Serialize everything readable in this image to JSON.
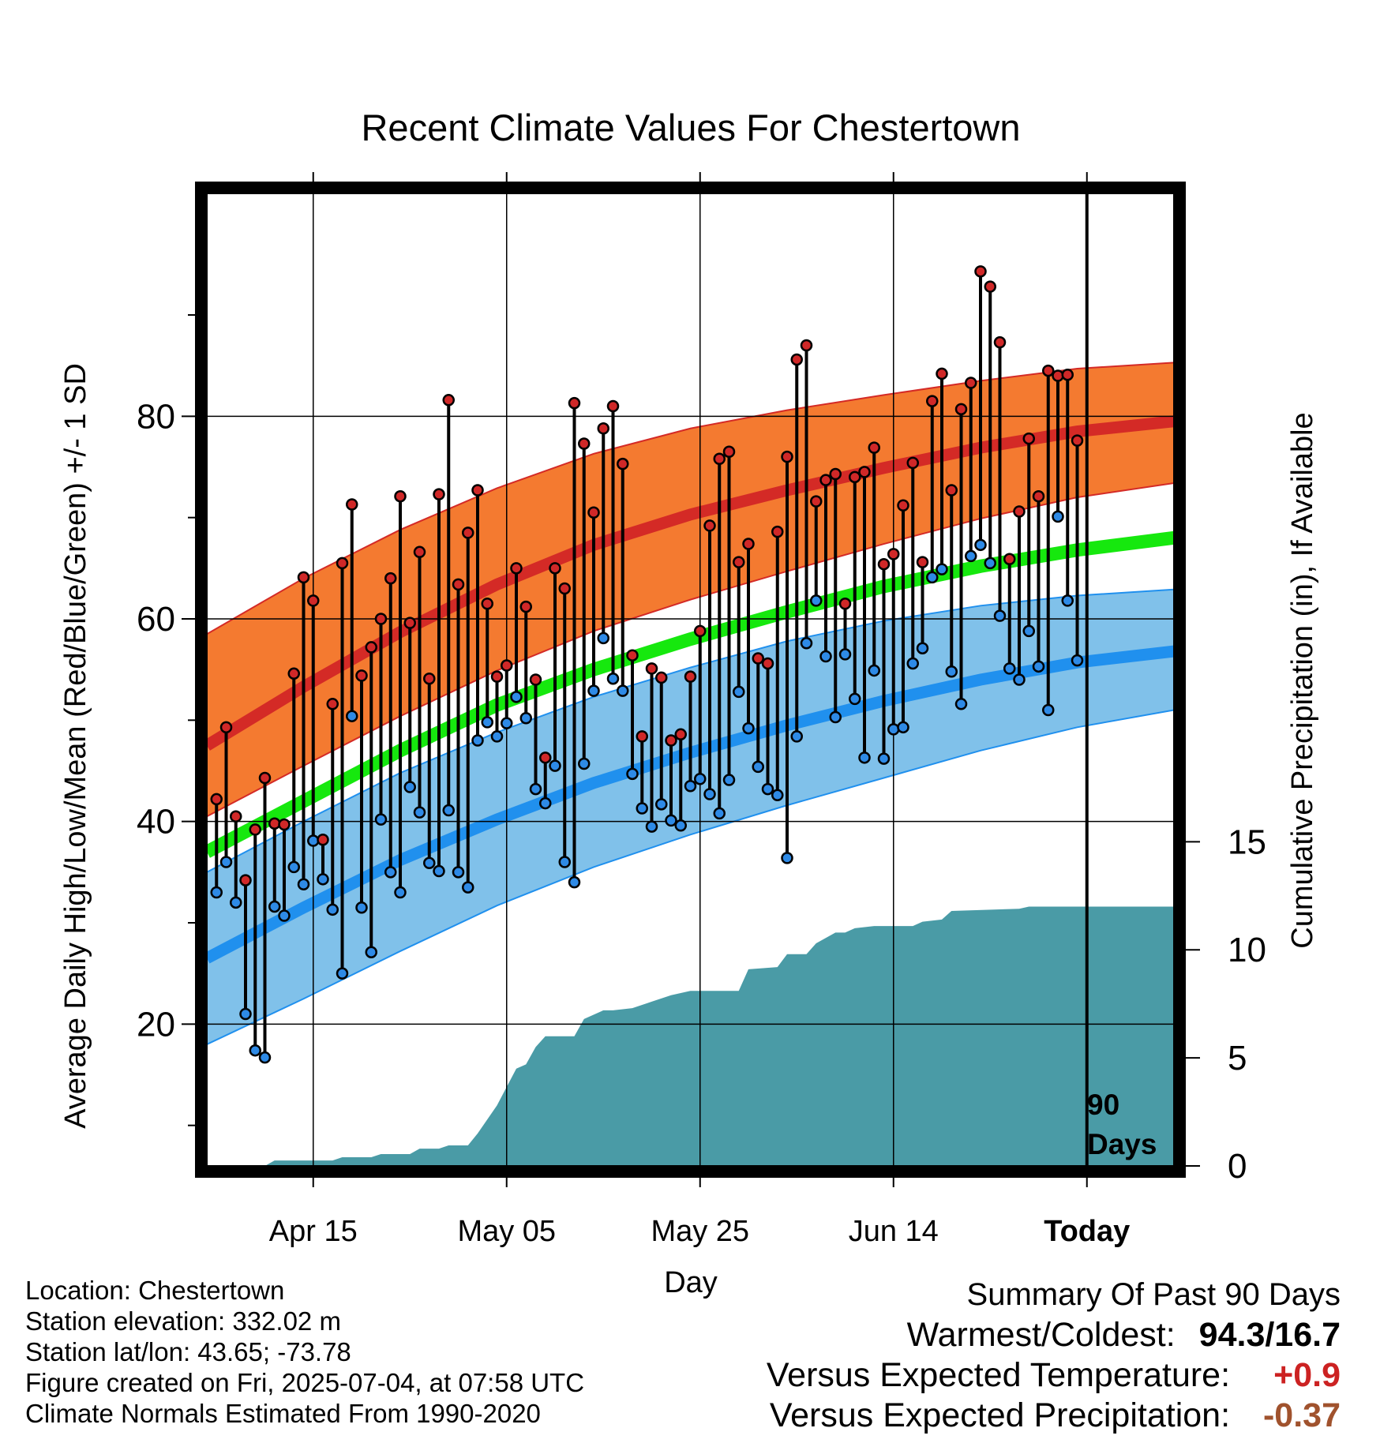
{
  "chart_data": {
    "type": "line",
    "title": "Recent Climate Values For Chestertown",
    "xlabel": "Day",
    "ylabel": "Average Daily High/Low/Mean (Red/Blue/Green) +/- 1 SD",
    "y2label": "Cumulative Precipitation (in), If Available",
    "x_ticks": [
      "Apr 15",
      "May 05",
      "May 25",
      "Jun 14",
      "Today"
    ],
    "x_tick_days": [
      11,
      31,
      51,
      71,
      91
    ],
    "xlim": [
      0,
      100
    ],
    "ylim": [
      6,
      102
    ],
    "y_ticks": [
      20,
      40,
      60,
      80
    ],
    "y_minor_ticks": [
      10,
      30,
      50,
      70,
      90
    ],
    "y2lim": [
      0,
      45
    ],
    "y2_ticks": [
      0,
      5,
      10,
      15
    ],
    "grid": true,
    "today_marker": {
      "day": 91,
      "label_line1": "90",
      "label_line2": "Days"
    },
    "colors": {
      "high_band": "#f47a30",
      "high_line": "#d42a26",
      "low_band": "#80c1ea",
      "low_line": "#2090ee",
      "mean_line": "#16e80e",
      "precip": "#4a9ba6",
      "high_dot": "#d02828",
      "low_dot": "#2e8ae6"
    },
    "normals": {
      "days": [
        0,
        10,
        20,
        30,
        40,
        50,
        60,
        70,
        80,
        90,
        100
      ],
      "high_mean": [
        47.5,
        53.3,
        58.7,
        63.4,
        67.3,
        70.3,
        72.7,
        74.9,
        76.9,
        78.5,
        79.5
      ],
      "high_upper": [
        58.5,
        64.0,
        68.8,
        72.9,
        76.3,
        78.8,
        80.6,
        82.1,
        83.5,
        84.7,
        85.3
      ],
      "high_lower": [
        40.5,
        45.5,
        50.4,
        54.9,
        58.8,
        61.9,
        64.7,
        67.4,
        69.9,
        72.0,
        73.4
      ],
      "mean_line": [
        37.0,
        42.0,
        47.0,
        51.5,
        55.0,
        58.0,
        60.7,
        63.2,
        65.2,
        66.8,
        68.0
      ],
      "low_mean": [
        26.5,
        31.5,
        36.2,
        40.2,
        43.8,
        46.8,
        49.5,
        51.9,
        54.0,
        55.7,
        56.8
      ],
      "low_upper": [
        35.0,
        40.0,
        44.8,
        48.8,
        52.3,
        55.2,
        57.8,
        59.8,
        61.3,
        62.3,
        62.9
      ],
      "low_lower": [
        18.0,
        22.5,
        27.2,
        31.7,
        35.5,
        38.7,
        41.6,
        44.3,
        47.0,
        49.3,
        51.0
      ]
    },
    "series": [
      {
        "name": "High",
        "x": [
          1,
          2,
          3,
          4,
          5,
          6,
          7,
          8,
          9,
          10,
          11,
          12,
          13,
          14,
          15,
          16,
          17,
          18,
          19,
          20,
          21,
          22,
          23,
          24,
          25,
          26,
          27,
          28,
          29,
          30,
          31,
          32,
          33,
          34,
          35,
          36,
          37,
          38,
          39,
          40,
          41,
          42,
          43,
          44,
          45,
          46,
          47,
          48,
          49,
          50,
          51,
          52,
          53,
          54,
          55,
          56,
          57,
          58,
          59,
          60,
          61,
          62,
          63,
          64,
          65,
          66,
          67,
          68,
          69,
          70,
          71,
          72,
          73,
          74,
          75,
          76,
          77,
          78,
          79,
          80,
          81,
          82,
          83,
          84,
          85,
          86,
          87,
          88,
          89,
          90
        ],
        "values": [
          42.2,
          49.3,
          40.5,
          34.2,
          39.2,
          44.3,
          39.8,
          39.7,
          54.6,
          64.1,
          61.8,
          38.2,
          51.6,
          65.5,
          71.3,
          54.4,
          57.2,
          60.0,
          64.0,
          72.1,
          59.6,
          66.6,
          54.1,
          72.3,
          81.6,
          63.4,
          68.5,
          72.7,
          61.5,
          54.3,
          55.4,
          65.0,
          61.2,
          54.0,
          46.3,
          65.0,
          63.0,
          81.3,
          77.3,
          70.5,
          78.8,
          81.0,
          75.3,
          56.4,
          48.4,
          55.1,
          54.2,
          48.0,
          48.6,
          54.3,
          58.8,
          69.2,
          75.8,
          76.5,
          65.6,
          67.4,
          56.1,
          55.6,
          68.6,
          76.0,
          85.6,
          87.0,
          71.6,
          73.7,
          74.3,
          61.5,
          74.0,
          74.5,
          76.9,
          65.4,
          66.4,
          71.2,
          75.4,
          65.6,
          81.5,
          84.2,
          72.7,
          80.7,
          83.3,
          94.3,
          92.8,
          87.3,
          65.9,
          70.6,
          77.8,
          72.1,
          84.5,
          84.0,
          84.1,
          77.6
        ]
      },
      {
        "name": "Low",
        "x": [
          1,
          2,
          3,
          4,
          5,
          6,
          7,
          8,
          9,
          10,
          11,
          12,
          13,
          14,
          15,
          16,
          17,
          18,
          19,
          20,
          21,
          22,
          23,
          24,
          25,
          26,
          27,
          28,
          29,
          30,
          31,
          32,
          33,
          34,
          35,
          36,
          37,
          38,
          39,
          40,
          41,
          42,
          43,
          44,
          45,
          46,
          47,
          48,
          49,
          50,
          51,
          52,
          53,
          54,
          55,
          56,
          57,
          58,
          59,
          60,
          61,
          62,
          63,
          64,
          65,
          66,
          67,
          68,
          69,
          70,
          71,
          72,
          73,
          74,
          75,
          76,
          77,
          78,
          79,
          80,
          81,
          82,
          83,
          84,
          85,
          86,
          87,
          88,
          89,
          90
        ],
        "values": [
          33.0,
          36.0,
          32.0,
          21.0,
          17.4,
          16.7,
          31.6,
          30.7,
          35.5,
          33.8,
          38.1,
          34.3,
          31.3,
          25.0,
          50.4,
          31.5,
          27.1,
          40.2,
          35.0,
          33.0,
          43.4,
          40.9,
          35.9,
          35.1,
          41.1,
          35.0,
          33.5,
          48.0,
          49.8,
          48.4,
          49.7,
          52.3,
          50.2,
          43.2,
          41.8,
          45.5,
          36.0,
          34.0,
          45.7,
          52.9,
          58.1,
          54.1,
          52.9,
          44.7,
          41.3,
          39.5,
          41.7,
          40.1,
          39.6,
          43.5,
          44.2,
          42.7,
          40.8,
          44.1,
          52.8,
          49.2,
          45.4,
          43.2,
          42.6,
          36.4,
          48.4,
          57.6,
          61.8,
          56.3,
          50.3,
          56.5,
          52.1,
          46.3,
          54.9,
          46.2,
          49.1,
          49.3,
          55.6,
          57.1,
          64.1,
          64.9,
          54.8,
          51.6,
          66.2,
          67.3,
          65.5,
          60.3,
          55.1,
          54.0,
          58.8,
          55.3,
          51.0,
          70.1,
          61.8,
          55.9
        ]
      }
    ],
    "precip": {
      "x": [
        0,
        6,
        7,
        13,
        14,
        17,
        18,
        21,
        22,
        24,
        25,
        27,
        28,
        30,
        32,
        33,
        34,
        35,
        36,
        38,
        39,
        41,
        42,
        44,
        46,
        48,
        49,
        50,
        55,
        56,
        59,
        60,
        62,
        63,
        65,
        66,
        67,
        69,
        73,
        74,
        76,
        77,
        84,
        85,
        88,
        100
      ],
      "cumulative": [
        0.0,
        0.0,
        0.25,
        0.25,
        0.4,
        0.4,
        0.55,
        0.55,
        0.8,
        0.8,
        0.95,
        0.95,
        1.5,
        2.8,
        4.5,
        4.7,
        5.5,
        6.0,
        6.0,
        6.0,
        6.8,
        7.2,
        7.2,
        7.3,
        7.6,
        7.9,
        8.0,
        8.1,
        8.1,
        9.1,
        9.2,
        9.8,
        9.8,
        10.3,
        10.8,
        10.8,
        11.0,
        11.1,
        11.1,
        11.3,
        11.4,
        11.8,
        11.9,
        12.0,
        12.0,
        12.0
      ]
    }
  },
  "footer": {
    "location": "Location: Chestertown",
    "elevation": "Station elevation: 332.02 m",
    "latlon": "Station lat/lon: 43.65; -73.78",
    "created": "Figure created on Fri, 2025-07-04, at 07:58 UTC",
    "normals": "Climate Normals Estimated From 1990-2020"
  },
  "summary": {
    "heading": "Summary Of Past 90 Days",
    "warmest_label": "Warmest/Coldest:",
    "warmest_value": "94.3/16.7",
    "temp_label": "Versus Expected Temperature:",
    "temp_value": "+0.9",
    "temp_color": "#cc2222",
    "precip_label": "Versus Expected Precipitation:",
    "precip_value": "-0.37",
    "precip_color": "#a0522d"
  }
}
